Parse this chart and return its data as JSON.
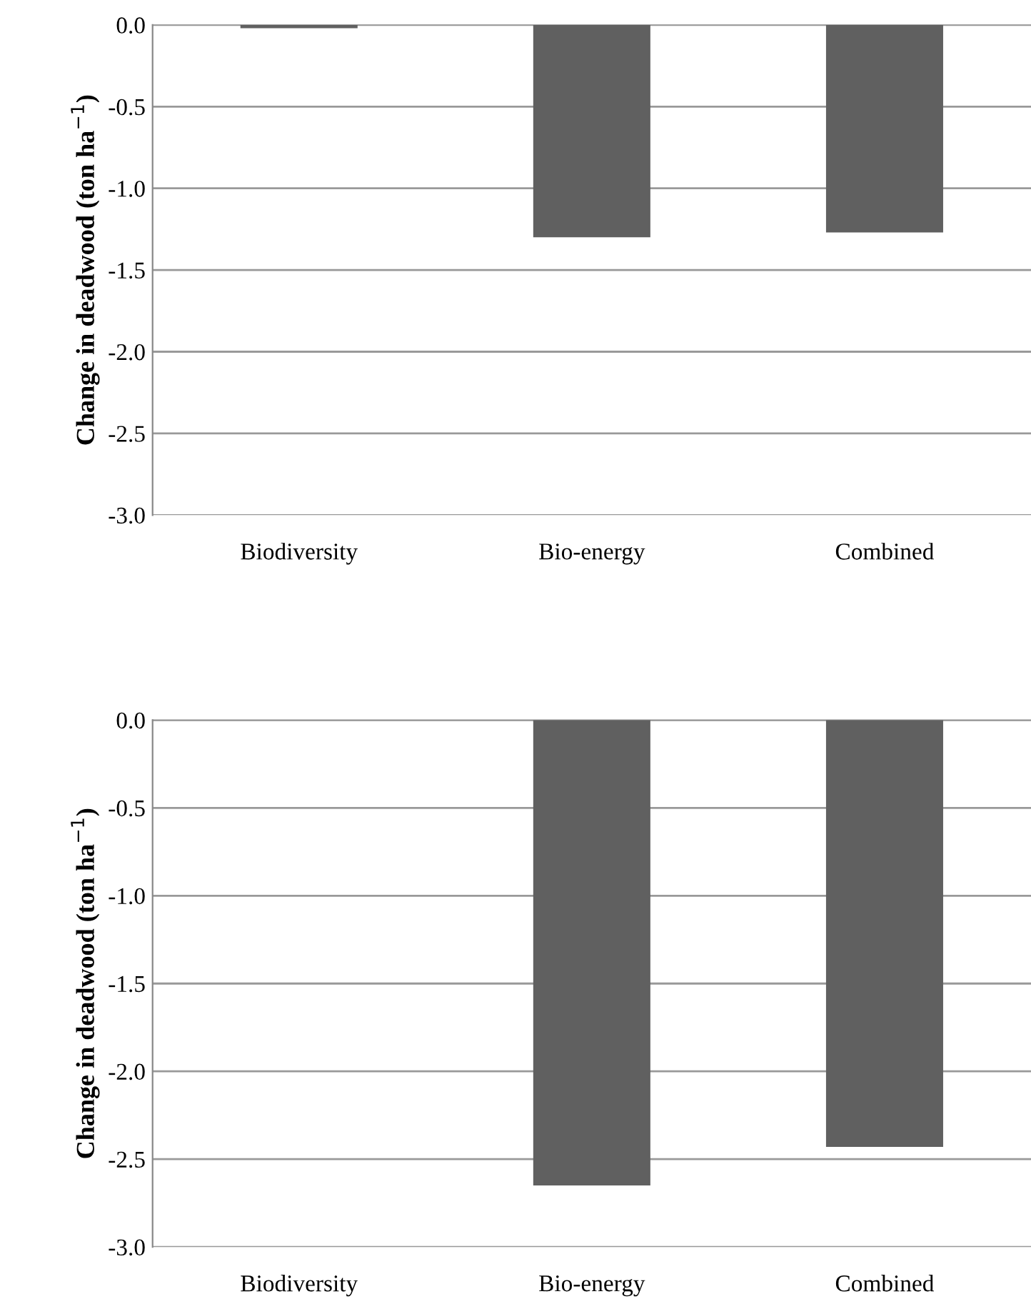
{
  "chart_data": [
    {
      "type": "bar",
      "categories": [
        "Biodiversity",
        "Bio-energy",
        "Combined"
      ],
      "values": [
        -0.02,
        -1.3,
        -1.27
      ],
      "color": "#606060",
      "ylabel": "Change in deadwood (ton ha$^{−1}$)",
      "ylim": [
        -3.0,
        0.0
      ],
      "yticks": [
        {
          "value": 0.0,
          "label": "0.0"
        },
        -0.5,
        {
          "value": -1.0,
          "label": "-1.0"
        },
        -1.5,
        {
          "value": -2.0,
          "label": "-2.0"
        },
        -2.5,
        {
          "value": -3.0,
          "label": "-3.0"
        }
      ],
      "grid": "y"
    },
    {
      "type": "bar",
      "categories": [
        "Biodiversity",
        "Bio-energy",
        "Combined"
      ],
      "values": [
        0.0,
        -2.65,
        -2.43
      ],
      "color": "#606060",
      "ylabel": "Change in deadwood (ton ha$^{−1}$)",
      "ylim": [
        -3.0,
        0.0
      ],
      "yticks": [
        {
          "value": 0.0,
          "label": "0.0"
        },
        -0.5,
        {
          "value": -1.0,
          "label": "-1.0"
        },
        -1.5,
        {
          "value": -2.0,
          "label": "-2.0"
        },
        -2.5,
        {
          "value": -3.0,
          "label": "-3.0"
        }
      ],
      "grid": "y"
    }
  ]
}
